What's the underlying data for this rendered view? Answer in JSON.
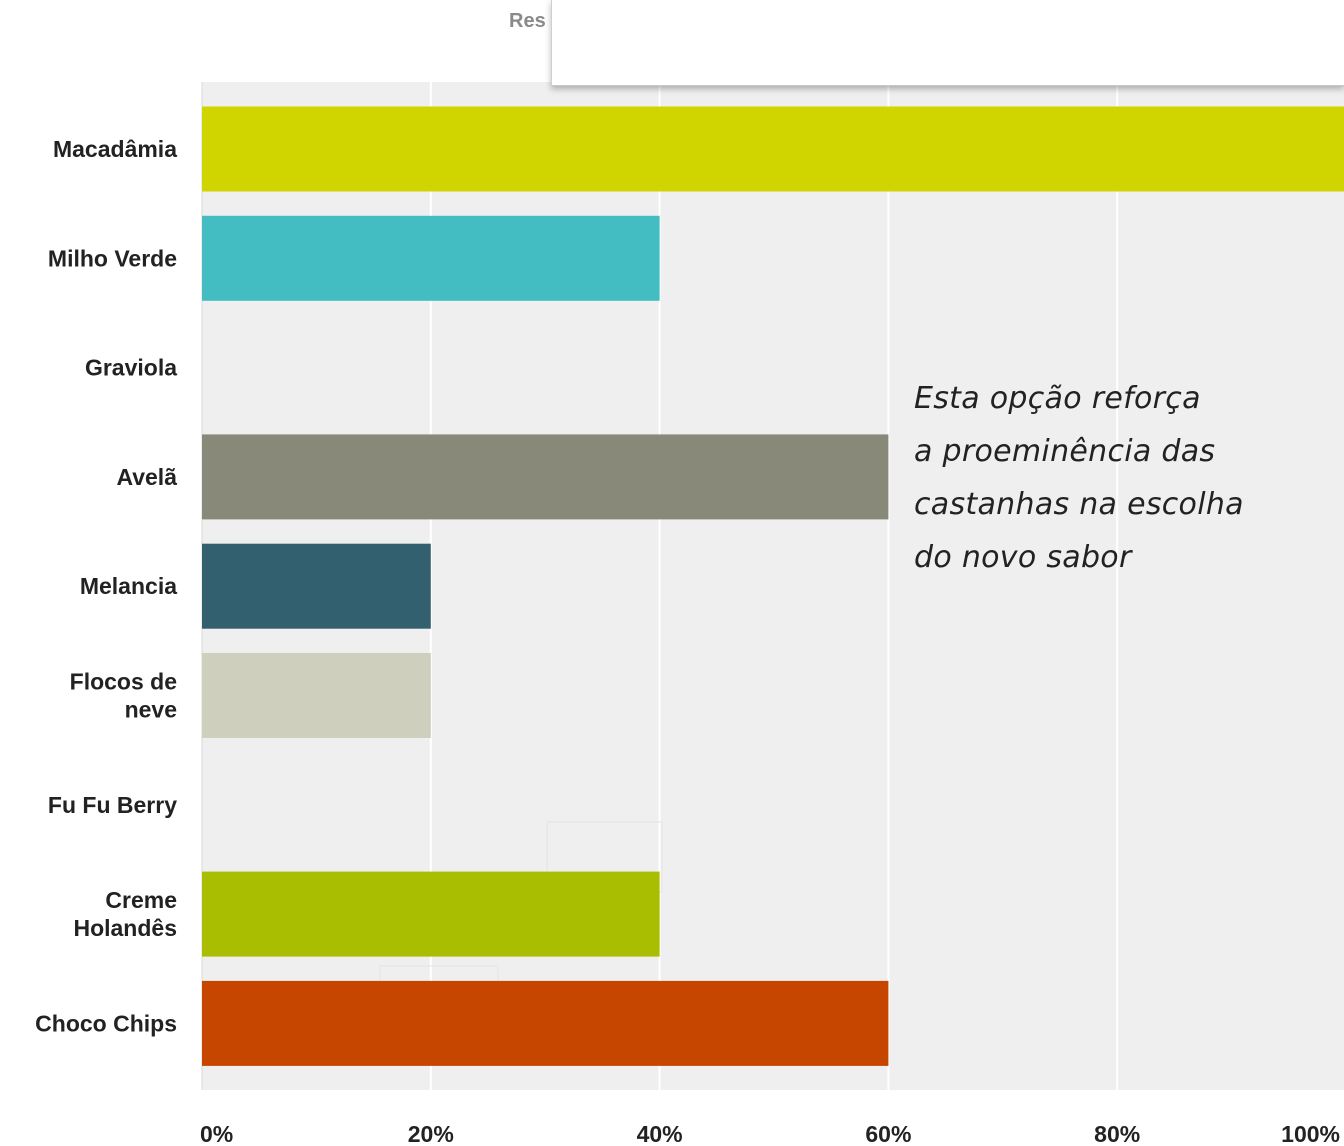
{
  "chart_data": {
    "type": "bar",
    "orientation": "horizontal",
    "title_fragment": "Res",
    "categories": [
      [
        "Macadâmia"
      ],
      [
        "Milho Verde"
      ],
      [
        "Graviola"
      ],
      [
        "Avelã"
      ],
      [
        "Melancia"
      ],
      [
        "Flocos de",
        "neve"
      ],
      [
        "Fu Fu Berry"
      ],
      [
        "Creme",
        "Holandês"
      ],
      [
        "Choco Chips"
      ]
    ],
    "values": [
      100,
      40,
      0,
      60,
      20,
      20,
      0,
      40,
      60
    ],
    "colors": [
      "#d0d500",
      "#43bcc2",
      "#ffffff",
      "#888979",
      "#33606f",
      "#cfcfbe",
      "#ffffff",
      "#a9be00",
      "#c64600"
    ],
    "x_ticks": [
      "0%",
      "20%",
      "40%",
      "60%",
      "80%",
      "100%"
    ],
    "xlim": [
      0,
      100
    ],
    "grid": true,
    "plot_background": "#efefef",
    "annotation": [
      "Esta opção reforça",
      "a proeminência das",
      "castanhas na escolha",
      "do novo sabor"
    ]
  }
}
